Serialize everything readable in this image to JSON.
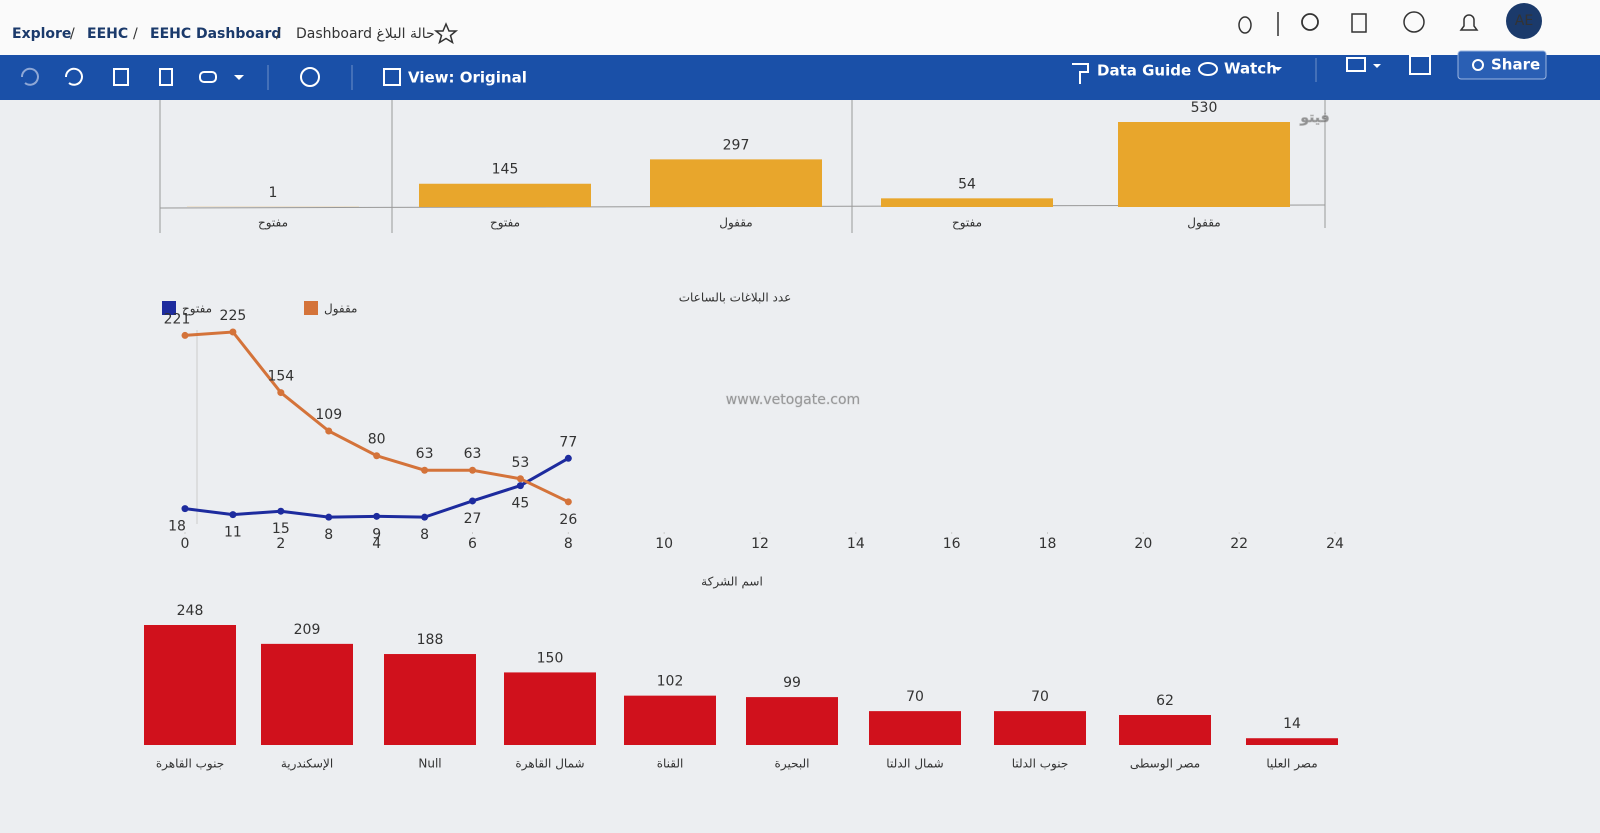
{
  "breadcrumb": [
    "Explore",
    "EEHC",
    "EEHC Dashboard",
    "Dashboard حالة البلاغ"
  ],
  "user": {
    "avatar": "AE"
  },
  "toolbar": {
    "view": "View: Original",
    "data_guide": "Data Guide",
    "watch": "Watch",
    "share": "Share"
  },
  "watermarks": [
    "www.vetogate.com",
    "فيتو"
  ],
  "chart_data": [
    {
      "type": "bar",
      "categories": [
        "مفتوح",
        "مفتوح",
        "مقفول",
        "مفتوح",
        "مقفول"
      ],
      "values": [
        1,
        145,
        297,
        54,
        530
      ],
      "color": "#e8a62c"
    },
    {
      "type": "line",
      "title": "عدد البلاغات بالساعات",
      "x": [
        0,
        1,
        2,
        3,
        4,
        5,
        6,
        7,
        8
      ],
      "xlim": [
        0,
        24
      ],
      "xticks": [
        0,
        2,
        4,
        6,
        8,
        10,
        12,
        14,
        16,
        18,
        20,
        22,
        24
      ],
      "series": [
        {
          "name": "مفتوح",
          "color": "#1d2b9e",
          "values": [
            18,
            11,
            15,
            8,
            9,
            8,
            27,
            45,
            77
          ]
        },
        {
          "name": "مقفول",
          "color": "#d4733a",
          "values": [
            221,
            225,
            154,
            109,
            80,
            63,
            63,
            53,
            26
          ]
        }
      ]
    },
    {
      "type": "bar",
      "title": "اسم الشركة",
      "categories": [
        "جنوب القاهرة",
        "الإسكندرية",
        "Null",
        "شمال القاهرة",
        "القناة",
        "البحيرة",
        "شمال الدلتا",
        "جنوب الدلتا",
        "مصر الوسطى",
        "مصر العليا"
      ],
      "values": [
        248,
        209,
        188,
        150,
        102,
        99,
        70,
        70,
        62,
        14
      ],
      "color": "#d0111c"
    }
  ]
}
